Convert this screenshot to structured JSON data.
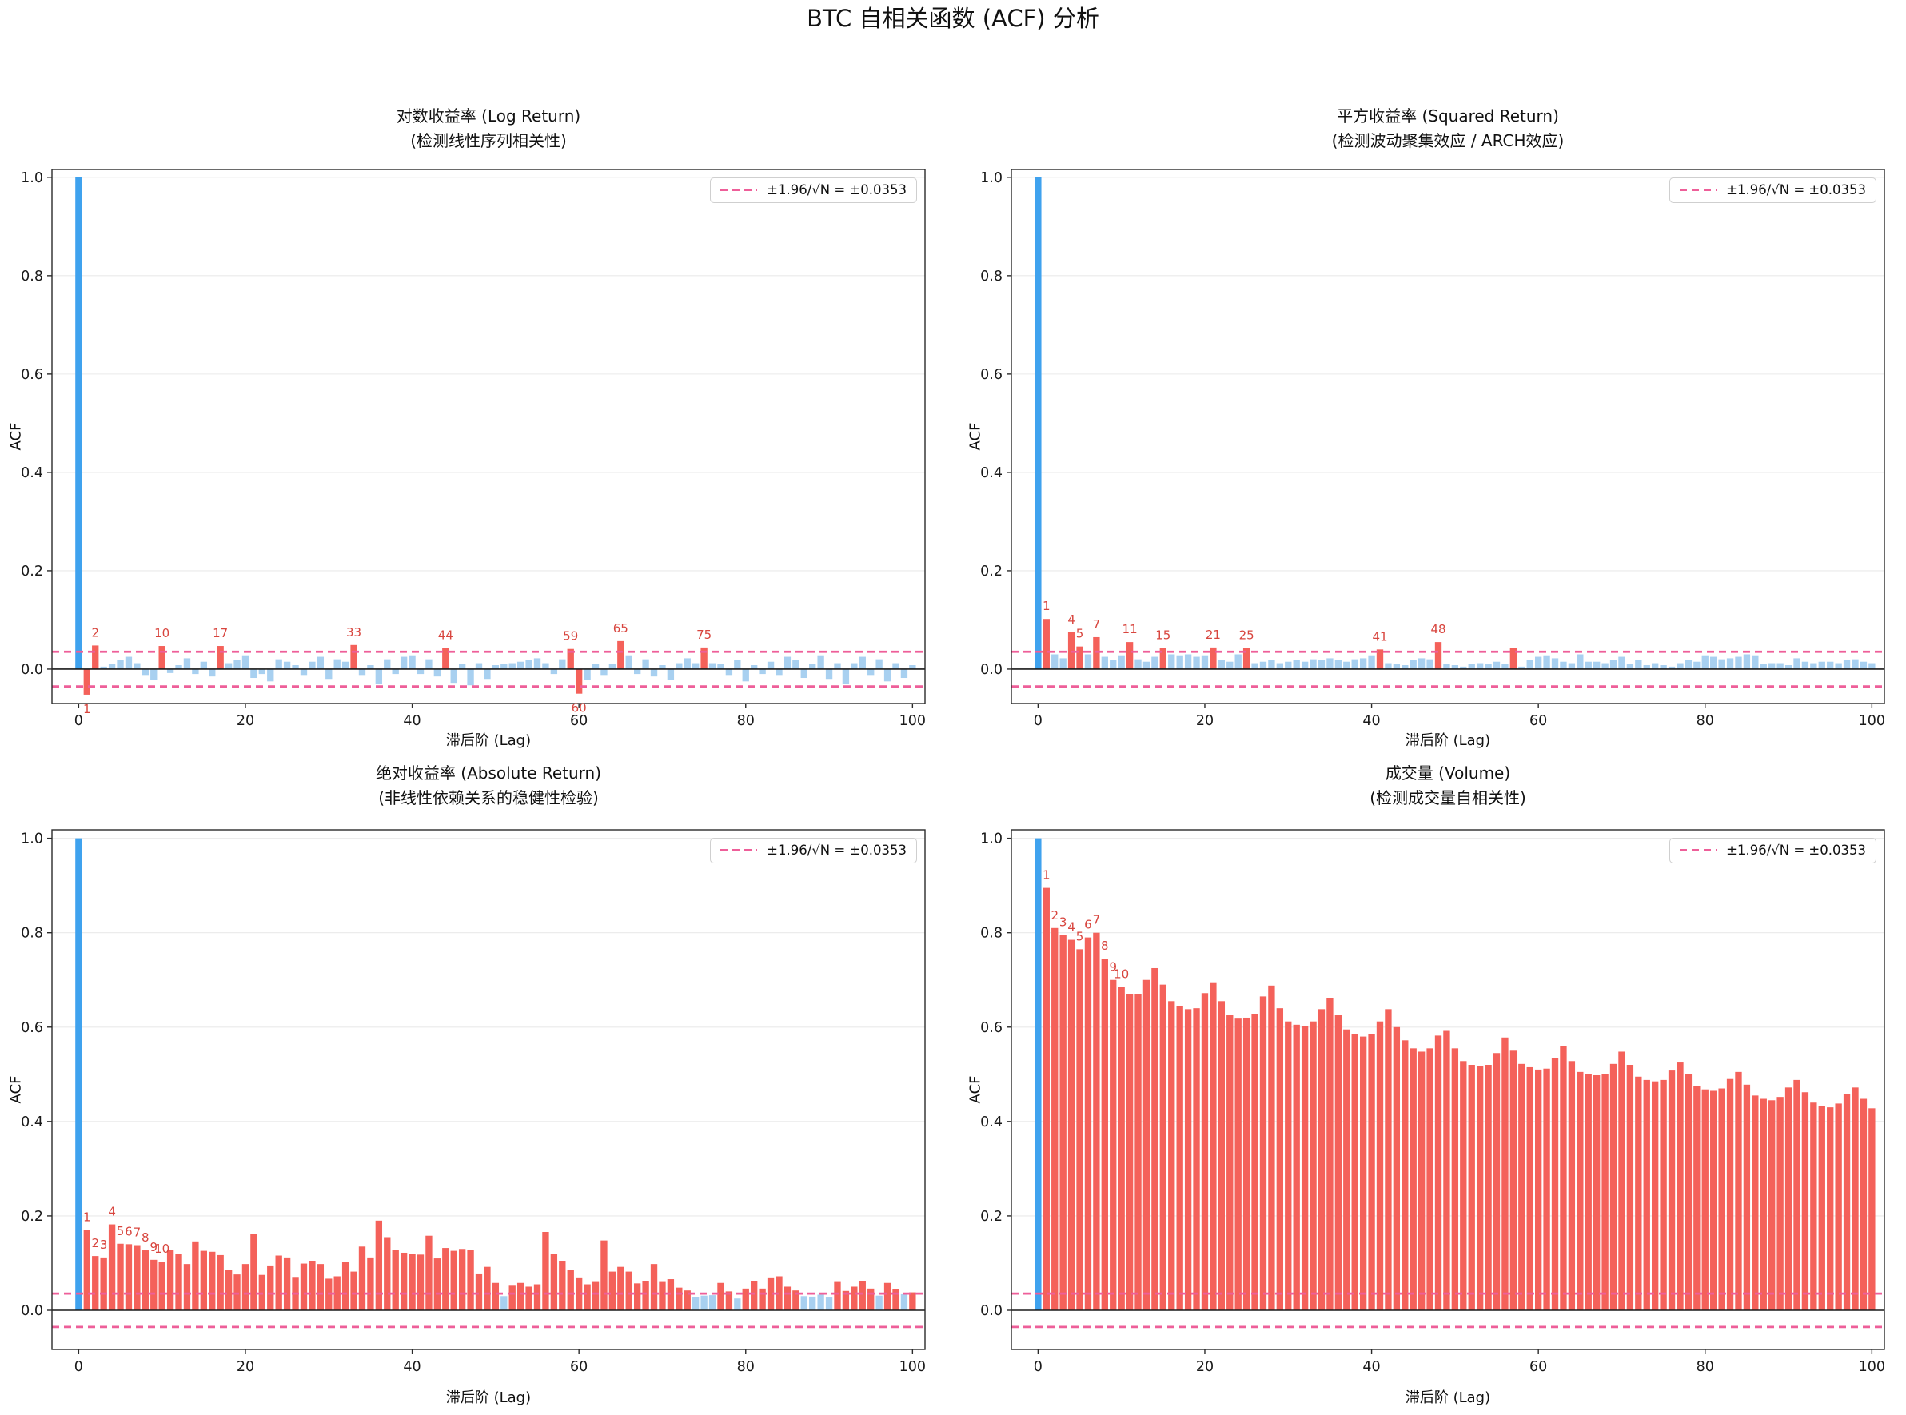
{
  "page_title": "BTC 自相关函数 (ACF) 分析",
  "common": {
    "ylabel": "ACF",
    "xlabel": "滞后阶 (Lag)",
    "legend_label": "±1.96/√N = ±0.0353",
    "confidence_bound": 0.0353,
    "xticks": [
      0,
      20,
      40,
      60,
      80,
      100
    ],
    "ytick_labels": [
      "0.0",
      "0.2",
      "0.4",
      "0.6",
      "0.8",
      "1.0"
    ],
    "colors": {
      "lag0_bar": "#3fa2ee",
      "significant_bar": "#f4615a",
      "insignificant_bar": "#a8d0f0",
      "confidence_band": "#ee5f99",
      "lag_label_text": "#d8453e",
      "zero_line": "#1a1a1a",
      "gridline": "#eaeaea",
      "spine": "#2a2a2a"
    }
  },
  "chart_data": [
    {
      "type": "bar",
      "panel": "log_return",
      "title_line1": "对数收益率 (Log Return)",
      "title_line2": "(检测线性序列相关性)",
      "xlabel": "滞后阶 (Lag)",
      "ylabel": "ACF",
      "ylim": [
        -0.07,
        1.016
      ],
      "labeled_lags": [
        1,
        2,
        10,
        17,
        33,
        44,
        59,
        60,
        65,
        75
      ],
      "lags": "0-100",
      "values": [
        1.0,
        -0.052,
        0.048,
        0.005,
        0.01,
        0.018,
        0.025,
        0.012,
        -0.012,
        -0.022,
        0.047,
        -0.008,
        0.008,
        0.022,
        -0.01,
        0.015,
        -0.015,
        0.047,
        0.012,
        0.018,
        0.028,
        -0.018,
        -0.01,
        -0.025,
        0.02,
        0.015,
        0.008,
        -0.012,
        0.015,
        0.025,
        -0.02,
        0.02,
        0.015,
        0.049,
        -0.012,
        0.008,
        -0.03,
        0.02,
        -0.01,
        0.025,
        0.028,
        -0.01,
        0.02,
        -0.015,
        0.043,
        -0.028,
        0.01,
        -0.033,
        0.012,
        -0.02,
        0.008,
        0.01,
        0.012,
        0.015,
        0.018,
        0.022,
        0.012,
        -0.01,
        0.02,
        0.041,
        -0.05,
        -0.022,
        0.01,
        -0.012,
        0.01,
        0.057,
        0.028,
        -0.01,
        0.02,
        -0.015,
        0.008,
        -0.022,
        0.012,
        0.022,
        0.012,
        0.044,
        0.012,
        0.01,
        -0.012,
        0.018,
        -0.025,
        0.008,
        -0.01,
        0.015,
        -0.012,
        0.025,
        0.018,
        -0.018,
        0.01,
        0.028,
        -0.02,
        0.012,
        -0.03,
        0.012,
        0.025,
        -0.012,
        0.02,
        -0.025,
        0.012,
        -0.018,
        0.008
      ]
    },
    {
      "type": "bar",
      "panel": "squared_return",
      "title_line1": "平方收益率 (Squared Return)",
      "title_line2": "(检测波动聚集效应 / ARCH效应)",
      "xlabel": "滞后阶 (Lag)",
      "ylabel": "ACF",
      "ylim": [
        -0.07,
        1.016
      ],
      "labeled_lags": [
        1,
        4,
        5,
        7,
        11,
        15,
        21,
        25,
        41,
        48
      ],
      "lags": "0-100",
      "values": [
        1.0,
        0.102,
        0.03,
        0.022,
        0.075,
        0.046,
        0.03,
        0.065,
        0.025,
        0.018,
        0.028,
        0.055,
        0.02,
        0.015,
        0.025,
        0.043,
        0.03,
        0.028,
        0.03,
        0.025,
        0.028,
        0.044,
        0.018,
        0.015,
        0.03,
        0.043,
        0.012,
        0.015,
        0.018,
        0.012,
        0.015,
        0.018,
        0.015,
        0.02,
        0.018,
        0.022,
        0.018,
        0.015,
        0.02,
        0.022,
        0.028,
        0.04,
        0.012,
        0.01,
        0.008,
        0.018,
        0.022,
        0.02,
        0.055,
        0.01,
        0.008,
        0.005,
        0.01,
        0.012,
        0.01,
        0.015,
        0.01,
        0.043,
        0.005,
        0.018,
        0.025,
        0.028,
        0.022,
        0.015,
        0.012,
        0.03,
        0.015,
        0.015,
        0.012,
        0.018,
        0.025,
        0.01,
        0.018,
        0.008,
        0.012,
        0.008,
        0.005,
        0.012,
        0.018,
        0.015,
        0.028,
        0.025,
        0.02,
        0.022,
        0.025,
        0.03,
        0.028,
        0.01,
        0.012,
        0.012,
        0.008,
        0.022,
        0.015,
        0.012,
        0.015,
        0.015,
        0.012,
        0.018,
        0.02,
        0.015,
        0.012
      ]
    },
    {
      "type": "bar",
      "panel": "absolute_return",
      "title_line1": "绝对收益率 (Absolute Return)",
      "title_line2": "(非线性依赖关系的稳健性检验)",
      "xlabel": "滞后阶 (Lag)",
      "ylabel": "ACF",
      "ylim": [
        -0.083,
        1.018
      ],
      "labeled_lags": [
        1,
        2,
        3,
        4,
        5,
        6,
        7,
        8,
        9,
        10
      ],
      "lags": "0-100",
      "values": [
        1.0,
        0.17,
        0.115,
        0.112,
        0.182,
        0.141,
        0.14,
        0.138,
        0.127,
        0.107,
        0.103,
        0.128,
        0.119,
        0.098,
        0.146,
        0.126,
        0.124,
        0.117,
        0.085,
        0.076,
        0.098,
        0.162,
        0.075,
        0.095,
        0.116,
        0.112,
        0.069,
        0.099,
        0.105,
        0.098,
        0.067,
        0.072,
        0.102,
        0.082,
        0.135,
        0.112,
        0.19,
        0.155,
        0.128,
        0.122,
        0.12,
        0.118,
        0.158,
        0.11,
        0.132,
        0.126,
        0.13,
        0.128,
        0.078,
        0.092,
        0.058,
        0.03,
        0.052,
        0.058,
        0.05,
        0.055,
        0.166,
        0.12,
        0.105,
        0.086,
        0.068,
        0.055,
        0.06,
        0.148,
        0.082,
        0.092,
        0.082,
        0.057,
        0.062,
        0.098,
        0.06,
        0.066,
        0.048,
        0.042,
        0.028,
        0.031,
        0.032,
        0.058,
        0.04,
        0.025,
        0.046,
        0.062,
        0.046,
        0.068,
        0.072,
        0.05,
        0.042,
        0.03,
        0.029,
        0.033,
        0.027,
        0.06,
        0.041,
        0.05,
        0.062,
        0.046,
        0.031,
        0.058,
        0.044,
        0.034,
        0.038
      ]
    },
    {
      "type": "bar",
      "panel": "volume",
      "title_line1": "成交量 (Volume)",
      "title_line2": "(检测成交量自相关性)",
      "xlabel": "滞后阶 (Lag)",
      "ylabel": "ACF",
      "ylim": [
        -0.083,
        1.018
      ],
      "labeled_lags": [
        1,
        2,
        3,
        4,
        5,
        6,
        7,
        8,
        9,
        10
      ],
      "lags": "0-100",
      "values": [
        1.0,
        0.895,
        0.81,
        0.795,
        0.785,
        0.765,
        0.79,
        0.8,
        0.745,
        0.7,
        0.685,
        0.67,
        0.67,
        0.7,
        0.725,
        0.69,
        0.655,
        0.645,
        0.638,
        0.64,
        0.672,
        0.695,
        0.655,
        0.625,
        0.618,
        0.62,
        0.628,
        0.665,
        0.688,
        0.64,
        0.612,
        0.605,
        0.603,
        0.612,
        0.638,
        0.662,
        0.625,
        0.595,
        0.585,
        0.58,
        0.585,
        0.612,
        0.638,
        0.6,
        0.572,
        0.555,
        0.548,
        0.555,
        0.582,
        0.592,
        0.555,
        0.528,
        0.52,
        0.518,
        0.52,
        0.545,
        0.578,
        0.55,
        0.522,
        0.515,
        0.51,
        0.512,
        0.535,
        0.56,
        0.528,
        0.505,
        0.5,
        0.498,
        0.5,
        0.522,
        0.548,
        0.52,
        0.495,
        0.488,
        0.485,
        0.488,
        0.508,
        0.525,
        0.5,
        0.475,
        0.468,
        0.465,
        0.47,
        0.49,
        0.505,
        0.478,
        0.455,
        0.448,
        0.445,
        0.452,
        0.472,
        0.488,
        0.462,
        0.44,
        0.432,
        0.43,
        0.438,
        0.458,
        0.472,
        0.448,
        0.428
      ]
    }
  ]
}
